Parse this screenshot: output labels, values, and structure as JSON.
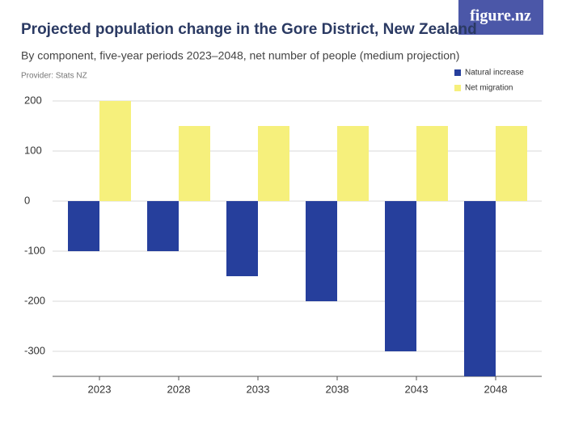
{
  "logo": "figure.nz",
  "chart_data": {
    "type": "bar",
    "title": "Projected population change in the Gore District, New Zealand",
    "subtitle": "By component, five-year periods 2023–2048, net number of people (medium projection)",
    "source": "Provider: Stats NZ",
    "categories": [
      "2023",
      "2028",
      "2033",
      "2038",
      "2043",
      "2048"
    ],
    "series": [
      {
        "name": "Natural increase",
        "color": "#263f9c",
        "values": [
          -100,
          -100,
          -150,
          -200,
          -300,
          -350
        ]
      },
      {
        "name": "Net migration",
        "color": "#f6f07c",
        "values": [
          200,
          150,
          150,
          150,
          150,
          150
        ]
      }
    ],
    "ylim": [
      -350,
      200
    ],
    "yticks": [
      -300,
      -200,
      -100,
      0,
      100,
      200
    ],
    "grid": true
  }
}
